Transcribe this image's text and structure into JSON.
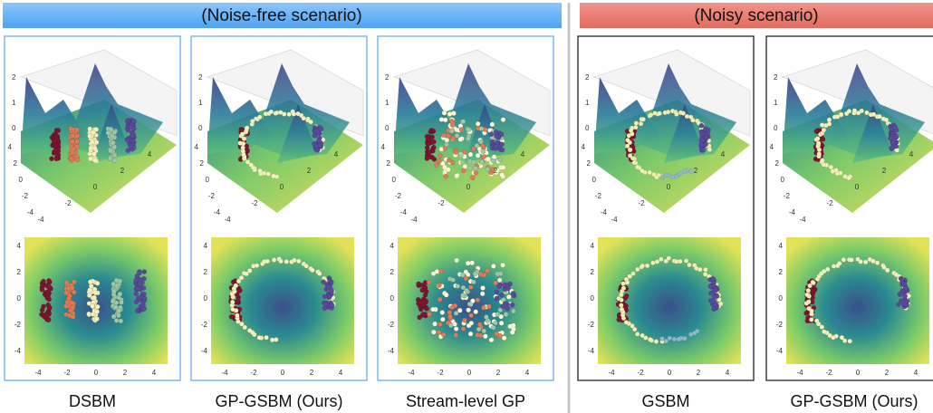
{
  "groups": [
    {
      "title": "(Noise-free scenario)",
      "panels": [
        "DSBM",
        "GP-GSBM (Ours)",
        "Stream-level GP"
      ]
    },
    {
      "title": "(Noisy scenario)",
      "panels": [
        "GSBM",
        "GP-GSBM (Ours)"
      ]
    }
  ],
  "axis_ticks": {
    "z": [
      "2",
      "1",
      "0"
    ],
    "x": [
      "-4",
      "-2",
      "0",
      "2",
      "4"
    ],
    "y": [
      "4",
      "2",
      "0",
      "-2",
      "-4"
    ]
  }
}
